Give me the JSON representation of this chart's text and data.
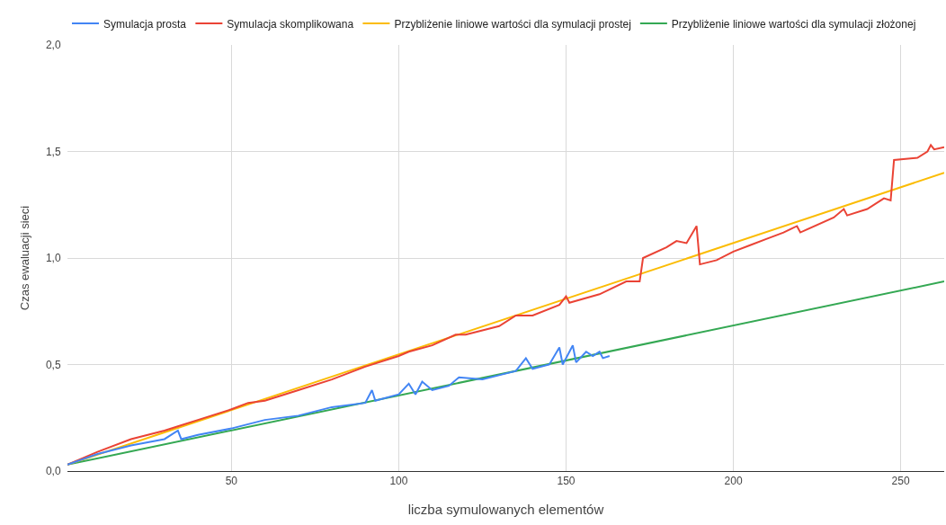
{
  "chart_data": {
    "type": "line",
    "xlabel": "liczba symulowanych elementów",
    "ylabel": "Czas ewaluacji sieci",
    "xlim": [
      1,
      263
    ],
    "xticks": [
      50,
      100,
      150,
      200,
      250
    ],
    "ylim": [
      0,
      2
    ],
    "yticks": [
      {
        "value": 0,
        "label": "0,0"
      },
      {
        "value": 0.5,
        "label": "0,5"
      },
      {
        "value": 1,
        "label": "1,0"
      },
      {
        "value": 1.5,
        "label": "1,5"
      },
      {
        "value": 2,
        "label": "2,0"
      }
    ],
    "grid": true,
    "legend": "top",
    "marker": "none",
    "line_style": "solid",
    "series": [
      {
        "name": "Symulacja prosta",
        "color": "#4285f4",
        "x": [
          1,
          10,
          20,
          30,
          34,
          35,
          40,
          50,
          55,
          60,
          70,
          80,
          90,
          92,
          93,
          100,
          103,
          105,
          107,
          110,
          115,
          118,
          125,
          130,
          135,
          138,
          140,
          145,
          148,
          149,
          152,
          153,
          156,
          158,
          160,
          161,
          163
        ],
        "values": [
          0.03,
          0.08,
          0.12,
          0.15,
          0.19,
          0.15,
          0.17,
          0.2,
          0.22,
          0.24,
          0.26,
          0.3,
          0.32,
          0.38,
          0.33,
          0.36,
          0.41,
          0.36,
          0.42,
          0.38,
          0.4,
          0.44,
          0.43,
          0.45,
          0.47,
          0.53,
          0.48,
          0.5,
          0.58,
          0.5,
          0.59,
          0.51,
          0.56,
          0.54,
          0.56,
          0.53,
          0.54
        ]
      },
      {
        "name": "Symulacja skomplikowana",
        "color": "#ea4335",
        "x": [
          1,
          10,
          20,
          30,
          34,
          40,
          50,
          55,
          60,
          70,
          80,
          90,
          100,
          103,
          110,
          117,
          120,
          130,
          135,
          140,
          148,
          150,
          151,
          160,
          168,
          172,
          173,
          180,
          183,
          186,
          189,
          190,
          195,
          200,
          205,
          210,
          215,
          219,
          220,
          230,
          233,
          234,
          240,
          245,
          247,
          248,
          255,
          258,
          259,
          260,
          263
        ],
        "values": [
          0.03,
          0.09,
          0.15,
          0.19,
          0.21,
          0.24,
          0.29,
          0.32,
          0.33,
          0.38,
          0.43,
          0.49,
          0.54,
          0.56,
          0.59,
          0.64,
          0.64,
          0.68,
          0.73,
          0.73,
          0.78,
          0.82,
          0.79,
          0.83,
          0.89,
          0.89,
          1.0,
          1.05,
          1.08,
          1.07,
          1.15,
          0.97,
          0.99,
          1.03,
          1.06,
          1.09,
          1.12,
          1.15,
          1.12,
          1.19,
          1.23,
          1.2,
          1.23,
          1.28,
          1.27,
          1.46,
          1.47,
          1.5,
          1.53,
          1.51,
          1.52
        ]
      },
      {
        "name": "Przybliżenie liniowe wartości dla symulacji prostej",
        "color": "#fbbc04",
        "x": [
          1,
          263
        ],
        "values": [
          0.03,
          1.4
        ]
      },
      {
        "name": "Przybliżenie liniowe wartości dla symulacji złożonej",
        "color": "#34a853",
        "x": [
          1,
          263
        ],
        "values": [
          0.03,
          0.89
        ]
      }
    ]
  }
}
